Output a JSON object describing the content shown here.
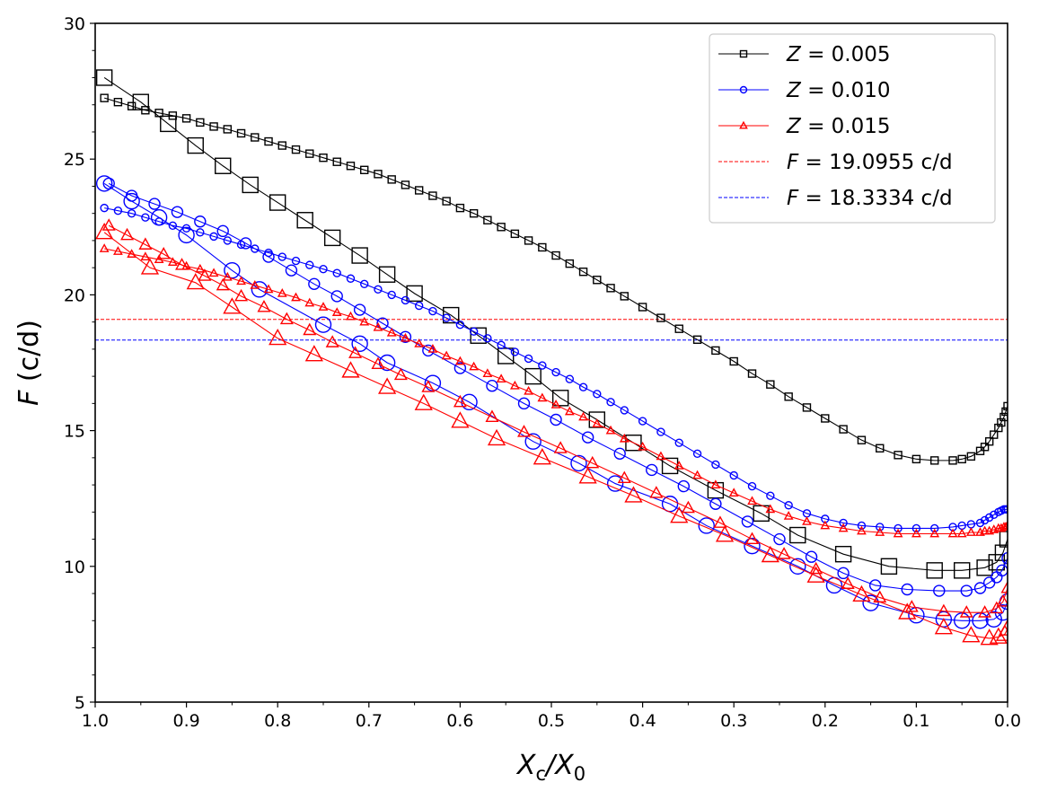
{
  "chart_data": {
    "type": "line",
    "xlabel": {
      "main": "X",
      "sub1": "c",
      "slash": "/X",
      "sub2": "0"
    },
    "ylabel": {
      "var": "F",
      "unit": " (c/d)"
    },
    "xlim": [
      1.0,
      0.0
    ],
    "ylim": [
      5,
      30
    ],
    "x_inverted": true,
    "xticks": [
      1.0,
      0.9,
      0.8,
      0.7,
      0.6,
      0.5,
      0.4,
      0.3,
      0.2,
      0.1,
      0.0
    ],
    "xtick_labels": [
      "1.0",
      "0.9",
      "0.8",
      "0.7",
      "0.6",
      "0.5",
      "0.4",
      "0.3",
      "0.2",
      "0.1",
      "0.0"
    ],
    "yticks": [
      5,
      10,
      15,
      20,
      25,
      30
    ],
    "ytick_labels": [
      "5",
      "10",
      "15",
      "20",
      "25",
      "30"
    ],
    "grid": false,
    "legend_position": "top-right",
    "legend": [
      {
        "var": "Z",
        "text": " = 0.005",
        "color": "#000000",
        "marker": "square",
        "style": "solid"
      },
      {
        "var": "Z",
        "text": " = 0.010",
        "color": "#0000ff",
        "marker": "circle",
        "style": "solid"
      },
      {
        "var": "Z",
        "text": " = 0.015",
        "color": "#ff0000",
        "marker": "triangle",
        "style": "solid"
      },
      {
        "var": "F",
        "text": " = 19.0955 c/d",
        "color": "#ff0000",
        "marker": "none",
        "style": "dashed"
      },
      {
        "var": "F",
        "text": " = 18.3334 c/d",
        "color": "#0000ff",
        "marker": "none",
        "style": "dashed"
      }
    ],
    "hlines": [
      {
        "y": 19.0955,
        "color": "#ff0000"
      },
      {
        "y": 18.3334,
        "color": "#0000ff"
      }
    ],
    "series": [
      {
        "color": "#000000",
        "marker": "square",
        "marker_size": "small",
        "x": [
          0.99,
          0.975,
          0.96,
          0.945,
          0.93,
          0.915,
          0.9,
          0.885,
          0.87,
          0.855,
          0.84,
          0.825,
          0.81,
          0.795,
          0.78,
          0.765,
          0.75,
          0.735,
          0.72,
          0.705,
          0.69,
          0.675,
          0.66,
          0.645,
          0.63,
          0.615,
          0.6,
          0.585,
          0.57,
          0.555,
          0.54,
          0.525,
          0.51,
          0.495,
          0.48,
          0.465,
          0.45,
          0.435,
          0.42,
          0.4,
          0.38,
          0.36,
          0.34,
          0.32,
          0.3,
          0.28,
          0.26,
          0.24,
          0.22,
          0.2,
          0.18,
          0.16,
          0.14,
          0.12,
          0.1,
          0.08,
          0.06,
          0.05,
          0.04,
          0.03,
          0.025,
          0.02,
          0.015,
          0.01,
          0.007,
          0.004,
          0.002,
          0.0
        ],
        "y": [
          27.25,
          27.1,
          26.95,
          26.8,
          26.7,
          26.6,
          26.5,
          26.35,
          26.2,
          26.1,
          25.95,
          25.8,
          25.65,
          25.5,
          25.35,
          25.2,
          25.05,
          24.9,
          24.75,
          24.6,
          24.45,
          24.25,
          24.05,
          23.85,
          23.65,
          23.45,
          23.2,
          23.0,
          22.75,
          22.5,
          22.25,
          22.0,
          21.75,
          21.45,
          21.15,
          20.85,
          20.55,
          20.25,
          19.95,
          19.55,
          19.15,
          18.75,
          18.35,
          17.95,
          17.55,
          17.1,
          16.7,
          16.25,
          15.85,
          15.45,
          15.05,
          14.65,
          14.35,
          14.1,
          13.95,
          13.9,
          13.9,
          13.95,
          14.05,
          14.25,
          14.4,
          14.6,
          14.85,
          15.1,
          15.3,
          15.5,
          15.7,
          15.9
        ]
      },
      {
        "color": "#000000",
        "marker": "square",
        "marker_size": "large",
        "x": [
          0.99,
          0.95,
          0.92,
          0.89,
          0.86,
          0.83,
          0.8,
          0.77,
          0.74,
          0.71,
          0.68,
          0.65,
          0.61,
          0.58,
          0.55,
          0.52,
          0.49,
          0.45,
          0.41,
          0.37,
          0.32,
          0.27,
          0.23,
          0.18,
          0.13,
          0.08,
          0.05,
          0.025,
          0.012,
          0.005,
          0.0
        ],
        "y": [
          28.0,
          27.1,
          26.3,
          25.5,
          24.75,
          24.05,
          23.4,
          22.75,
          22.1,
          21.45,
          20.75,
          20.05,
          19.25,
          18.5,
          17.75,
          17.0,
          16.2,
          15.4,
          14.55,
          13.7,
          12.8,
          11.95,
          11.15,
          10.45,
          10.0,
          9.85,
          9.85,
          9.95,
          10.15,
          10.5,
          11.0
        ]
      },
      {
        "color": "#0000ff",
        "marker": "circle",
        "marker_size": "small",
        "x": [
          0.99,
          0.975,
          0.96,
          0.945,
          0.93,
          0.915,
          0.9,
          0.885,
          0.87,
          0.855,
          0.84,
          0.825,
          0.81,
          0.795,
          0.78,
          0.765,
          0.75,
          0.735,
          0.72,
          0.705,
          0.69,
          0.675,
          0.66,
          0.645,
          0.63,
          0.615,
          0.6,
          0.585,
          0.57,
          0.555,
          0.54,
          0.525,
          0.51,
          0.495,
          0.48,
          0.465,
          0.45,
          0.435,
          0.42,
          0.4,
          0.38,
          0.36,
          0.34,
          0.32,
          0.3,
          0.28,
          0.26,
          0.24,
          0.22,
          0.2,
          0.18,
          0.16,
          0.14,
          0.12,
          0.1,
          0.08,
          0.06,
          0.05,
          0.04,
          0.03,
          0.025,
          0.02,
          0.015,
          0.01,
          0.007,
          0.004,
          0.002,
          0.0
        ],
        "y": [
          23.2,
          23.1,
          23.0,
          22.85,
          22.7,
          22.55,
          22.45,
          22.3,
          22.15,
          22.0,
          21.85,
          21.7,
          21.55,
          21.4,
          21.25,
          21.1,
          20.95,
          20.8,
          20.6,
          20.4,
          20.2,
          20.0,
          19.8,
          19.6,
          19.4,
          19.15,
          18.9,
          18.65,
          18.4,
          18.15,
          17.9,
          17.65,
          17.4,
          17.15,
          16.9,
          16.6,
          16.35,
          16.05,
          15.75,
          15.35,
          14.95,
          14.55,
          14.15,
          13.75,
          13.35,
          12.95,
          12.6,
          12.25,
          11.95,
          11.75,
          11.6,
          11.5,
          11.45,
          11.4,
          11.4,
          11.4,
          11.45,
          11.5,
          11.55,
          11.6,
          11.7,
          11.8,
          11.9,
          12.0,
          12.05,
          12.1,
          12.1,
          12.1
        ]
      },
      {
        "color": "#0000ff",
        "marker": "circle",
        "marker_size": "large",
        "x": [
          0.99,
          0.96,
          0.93,
          0.9,
          0.85,
          0.82,
          0.75,
          0.71,
          0.68,
          0.63,
          0.59,
          0.52,
          0.47,
          0.43,
          0.37,
          0.33,
          0.28,
          0.23,
          0.19,
          0.15,
          0.1,
          0.07,
          0.05,
          0.03,
          0.015,
          0.005,
          0.0
        ],
        "y": [
          24.1,
          23.45,
          22.85,
          22.2,
          20.9,
          20.2,
          18.9,
          18.2,
          17.5,
          16.75,
          16.05,
          14.6,
          13.8,
          13.05,
          12.3,
          11.5,
          10.75,
          10.0,
          9.3,
          8.65,
          8.2,
          8.05,
          8.0,
          8.0,
          8.05,
          8.3,
          8.7
        ]
      },
      {
        "color": "#0000ff",
        "marker": "circle",
        "marker_size": "medium",
        "x": [
          0.985,
          0.96,
          0.935,
          0.91,
          0.885,
          0.86,
          0.835,
          0.81,
          0.785,
          0.76,
          0.735,
          0.71,
          0.685,
          0.66,
          0.635,
          0.6,
          0.565,
          0.53,
          0.495,
          0.46,
          0.425,
          0.39,
          0.355,
          0.32,
          0.285,
          0.25,
          0.215,
          0.18,
          0.145,
          0.11,
          0.075,
          0.045,
          0.03,
          0.02,
          0.012,
          0.006,
          0.0
        ],
        "y": [
          24.1,
          23.65,
          23.35,
          23.05,
          22.7,
          22.35,
          21.9,
          21.4,
          20.9,
          20.4,
          19.95,
          19.45,
          18.95,
          18.45,
          17.95,
          17.3,
          16.65,
          16.0,
          15.4,
          14.75,
          14.15,
          13.55,
          12.95,
          12.3,
          11.65,
          11.0,
          10.35,
          9.75,
          9.3,
          9.15,
          9.1,
          9.1,
          9.2,
          9.4,
          9.6,
          9.85,
          10.3
        ]
      },
      {
        "color": "#ff0000",
        "marker": "triangle",
        "marker_size": "small",
        "x": [
          0.99,
          0.975,
          0.96,
          0.945,
          0.93,
          0.915,
          0.9,
          0.885,
          0.87,
          0.855,
          0.84,
          0.825,
          0.81,
          0.795,
          0.78,
          0.765,
          0.75,
          0.735,
          0.72,
          0.705,
          0.69,
          0.675,
          0.66,
          0.645,
          0.63,
          0.615,
          0.6,
          0.585,
          0.57,
          0.555,
          0.54,
          0.525,
          0.51,
          0.495,
          0.48,
          0.465,
          0.45,
          0.435,
          0.42,
          0.4,
          0.38,
          0.36,
          0.34,
          0.32,
          0.3,
          0.28,
          0.26,
          0.24,
          0.22,
          0.2,
          0.18,
          0.16,
          0.14,
          0.12,
          0.1,
          0.08,
          0.06,
          0.05,
          0.04,
          0.03,
          0.025,
          0.02,
          0.015,
          0.01,
          0.007,
          0.004,
          0.002,
          0.0
        ],
        "y": [
          21.7,
          21.6,
          21.5,
          21.4,
          21.3,
          21.2,
          21.05,
          20.95,
          20.8,
          20.65,
          20.5,
          20.35,
          20.2,
          20.05,
          19.9,
          19.7,
          19.55,
          19.35,
          19.2,
          19.0,
          18.8,
          18.6,
          18.4,
          18.2,
          18.0,
          17.75,
          17.55,
          17.35,
          17.1,
          16.9,
          16.65,
          16.45,
          16.2,
          15.95,
          15.7,
          15.5,
          15.25,
          15.0,
          14.7,
          14.4,
          14.05,
          13.7,
          13.35,
          13.0,
          12.7,
          12.4,
          12.1,
          11.85,
          11.65,
          11.5,
          11.4,
          11.3,
          11.25,
          11.2,
          11.2,
          11.2,
          11.2,
          11.2,
          11.25,
          11.25,
          11.3,
          11.3,
          11.35,
          11.4,
          11.4,
          11.45,
          11.45,
          11.5
        ]
      },
      {
        "color": "#ff0000",
        "marker": "triangle",
        "marker_size": "large",
        "x": [
          0.99,
          0.94,
          0.89,
          0.85,
          0.8,
          0.76,
          0.72,
          0.68,
          0.64,
          0.6,
          0.56,
          0.51,
          0.46,
          0.41,
          0.36,
          0.31,
          0.26,
          0.21,
          0.16,
          0.11,
          0.07,
          0.04,
          0.02,
          0.01,
          0.003,
          0.0
        ],
        "y": [
          22.3,
          21.0,
          20.45,
          19.55,
          18.4,
          17.8,
          17.2,
          16.6,
          16.0,
          15.35,
          14.7,
          14.0,
          13.3,
          12.6,
          11.85,
          11.15,
          10.4,
          9.65,
          8.95,
          8.3,
          7.75,
          7.45,
          7.35,
          7.4,
          7.5,
          7.7
        ]
      },
      {
        "color": "#ff0000",
        "marker": "triangle",
        "marker_size": "medium",
        "x": [
          0.985,
          0.965,
          0.945,
          0.925,
          0.905,
          0.88,
          0.86,
          0.84,
          0.815,
          0.79,
          0.765,
          0.74,
          0.715,
          0.69,
          0.665,
          0.635,
          0.6,
          0.565,
          0.53,
          0.49,
          0.455,
          0.42,
          0.385,
          0.35,
          0.315,
          0.28,
          0.245,
          0.21,
          0.175,
          0.14,
          0.105,
          0.07,
          0.045,
          0.025,
          0.012,
          0.005,
          0.0
        ],
        "y": [
          22.55,
          22.2,
          21.85,
          21.5,
          21.1,
          20.7,
          20.35,
          19.95,
          19.55,
          19.1,
          18.7,
          18.25,
          17.85,
          17.45,
          17.05,
          16.6,
          16.05,
          15.5,
          14.95,
          14.35,
          13.8,
          13.25,
          12.7,
          12.15,
          11.6,
          11.0,
          10.45,
          9.9,
          9.35,
          8.85,
          8.5,
          8.35,
          8.3,
          8.3,
          8.45,
          8.7,
          9.2
        ]
      }
    ]
  }
}
